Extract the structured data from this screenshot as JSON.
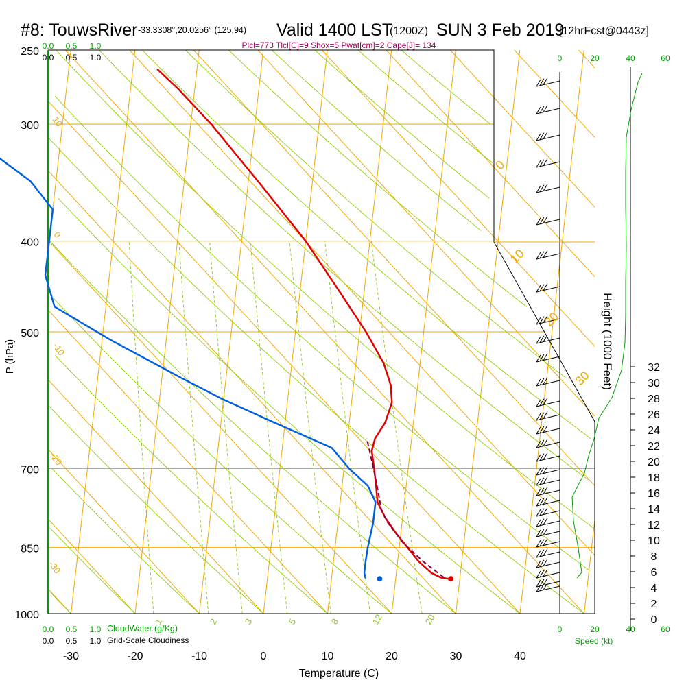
{
  "header": {
    "station": "#8: TouwsRiver",
    "location": "-33.3308°,20.0256° (125,94)",
    "valid": "Valid 1400 LST",
    "utc": "(1200Z)",
    "date": "SUN 3 Feb 2019",
    "forecast": "[12hrFcst@0443z]",
    "indices": "Plcl=773 Tlcl[C]=9 Shox=5 Pwat[cm]=2 Cape[J]= 134"
  },
  "colors": {
    "isotherm": "#f0a800",
    "dry_adiabat": "#8ed000",
    "mixing_ratio": "#90c820",
    "temperature": "#e00000",
    "dewpoint": "#0060e0",
    "parcel": "#8a0040",
    "green_label": "#00a000",
    "indices": "#a0005a"
  },
  "axes": {
    "xlabel": "Temperature (C)",
    "ylabel": "P (hPa)",
    "height_label": "Height (1000 Feet)",
    "speed_label": "Speed (kt)"
  },
  "legend": {
    "cloudwater_label": "CloudWater (g/Kg)",
    "cloudiness_label": "Grid-Scale Cloudiness",
    "scale_values": [
      "0.0",
      "0.5",
      "1.0"
    ]
  },
  "chart_data": {
    "type": "line",
    "title": "Skew-T log-P sounding",
    "x_axis": {
      "ticks": [
        "-30",
        "-20",
        "-10",
        "0",
        "10",
        "20",
        "30",
        "40"
      ],
      "tick_values": [
        -30,
        -20,
        -10,
        0,
        10,
        20,
        30,
        40
      ]
    },
    "y_axis": {
      "ticks": [
        "250",
        "300",
        "400",
        "500",
        "700",
        "850",
        "1000"
      ],
      "tick_values": [
        250,
        300,
        400,
        500,
        700,
        850,
        1000
      ],
      "scale": "log"
    },
    "height_axis": {
      "ticks": [
        "0",
        "2",
        "4",
        "6",
        "8",
        "10",
        "12",
        "14",
        "16",
        "18",
        "20",
        "22",
        "24",
        "26",
        "28",
        "30",
        "32"
      ],
      "unit": "1000 ft"
    },
    "wind_speed_axis": {
      "bottom_ticks": [
        "0",
        "20",
        "40",
        "60"
      ],
      "top_ticks": [
        "0",
        "20",
        "40",
        "60"
      ]
    },
    "isotherm_labels": [
      "10",
      "0",
      "-10",
      "-20",
      "-30",
      "0",
      "10",
      "20",
      "30"
    ],
    "mixing_ratio_labels": [
      "1",
      "2",
      "3",
      "5",
      "8",
      "12",
      "20"
    ],
    "series": [
      {
        "name": "Temperature",
        "points": [
          {
            "p": 918,
            "t": 28.3
          },
          {
            "p": 915,
            "t": 27.0
          },
          {
            "p": 905,
            "t": 25.5
          },
          {
            "p": 880,
            "t": 23.3
          },
          {
            "p": 850,
            "t": 21.3
          },
          {
            "p": 820,
            "t": 19.2
          },
          {
            "p": 790,
            "t": 17.3
          },
          {
            "p": 760,
            "t": 15.8
          },
          {
            "p": 730,
            "t": 15.3
          },
          {
            "p": 700,
            "t": 14.7
          },
          {
            "p": 670,
            "t": 14.0
          },
          {
            "p": 650,
            "t": 14.3
          },
          {
            "p": 625,
            "t": 15.6
          },
          {
            "p": 595,
            "t": 16.3
          },
          {
            "p": 570,
            "t": 15.8
          },
          {
            "p": 540,
            "t": 14.3
          },
          {
            "p": 500,
            "t": 11.0
          },
          {
            "p": 455,
            "t": 6.4
          },
          {
            "p": 400,
            "t": 0.0
          },
          {
            "p": 350,
            "t": -7.7
          },
          {
            "p": 300,
            "t": -16.8
          },
          {
            "p": 275,
            "t": -22.6
          },
          {
            "p": 262,
            "t": -26.2
          }
        ]
      },
      {
        "name": "Dewpoint",
        "points": [
          {
            "p": 917,
            "t": 15.3
          },
          {
            "p": 905,
            "t": 15.0
          },
          {
            "p": 880,
            "t": 15.0
          },
          {
            "p": 850,
            "t": 15.1
          },
          {
            "p": 800,
            "t": 15.5
          },
          {
            "p": 760,
            "t": 15.5
          },
          {
            "p": 730,
            "t": 14.0
          },
          {
            "p": 700,
            "t": 10.8
          },
          {
            "p": 665,
            "t": 7.7
          },
          {
            "p": 625,
            "t": -1.7
          },
          {
            "p": 590,
            "t": -10.2
          },
          {
            "p": 560,
            "t": -17.0
          },
          {
            "p": 510,
            "t": -28.7
          },
          {
            "p": 470,
            "t": -38.0
          },
          {
            "p": 435,
            "t": -40.0
          },
          {
            "p": 400,
            "t": -40.0
          },
          {
            "p": 370,
            "t": -40.0
          },
          {
            "p": 345,
            "t": -44.0
          },
          {
            "p": 320,
            "t": -51.0
          },
          {
            "p": 290,
            "t": -58.0
          },
          {
            "p": 262,
            "t": -66.3
          }
        ]
      },
      {
        "name": "Parcel",
        "points": [
          {
            "p": 915,
            "t": 27.5
          },
          {
            "p": 880,
            "t": 24.0
          },
          {
            "p": 840,
            "t": 20.5
          },
          {
            "p": 800,
            "t": 17.8
          },
          {
            "p": 773,
            "t": 16.5
          },
          {
            "p": 740,
            "t": 15.7
          },
          {
            "p": 700,
            "t": 14.6
          },
          {
            "p": 665,
            "t": 13.5
          },
          {
            "p": 650,
            "t": 13.0
          }
        ]
      }
    ],
    "surface_points": {
      "temperature": 28.6,
      "dewpoint": 17.5,
      "p": 918
    }
  }
}
